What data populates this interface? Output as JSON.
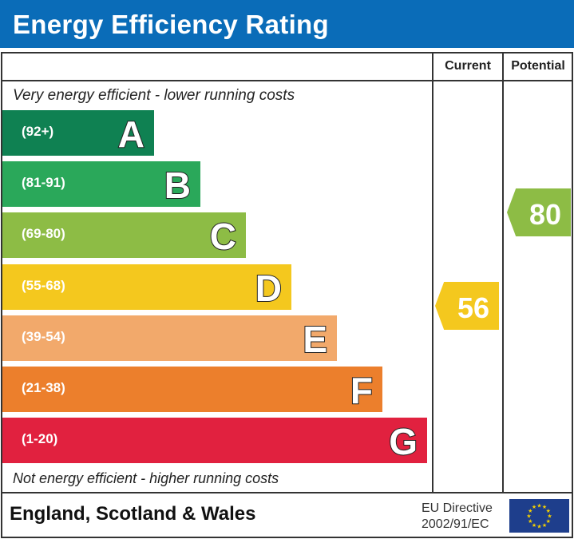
{
  "title": "Energy Efficiency Rating",
  "columns": {
    "current": "Current",
    "potential": "Potential"
  },
  "top_note": "Very energy efficient - lower running costs",
  "bottom_note": "Not energy efficient - higher running costs",
  "bands": [
    {
      "letter": "A",
      "range": "(92+)",
      "color": "#0f8152"
    },
    {
      "letter": "B",
      "range": "(81-91)",
      "color": "#2aa85a"
    },
    {
      "letter": "C",
      "range": "(69-80)",
      "color": "#8dbc45"
    },
    {
      "letter": "D",
      "range": "(55-68)",
      "color": "#f4c81e"
    },
    {
      "letter": "E",
      "range": "(39-54)",
      "color": "#f2a96b"
    },
    {
      "letter": "F",
      "range": "(21-38)",
      "color": "#ec7f2c"
    },
    {
      "letter": "G",
      "range": "(1-20)",
      "color": "#e1213f"
    }
  ],
  "current": {
    "value": "56",
    "band": "D",
    "color": "#f4c81e"
  },
  "potential": {
    "value": "80",
    "band": "C",
    "color": "#8dbc45"
  },
  "footer": {
    "region": "England, Scotland & Wales",
    "directive_line1": "EU Directive",
    "directive_line2": "2002/91/EC"
  }
}
